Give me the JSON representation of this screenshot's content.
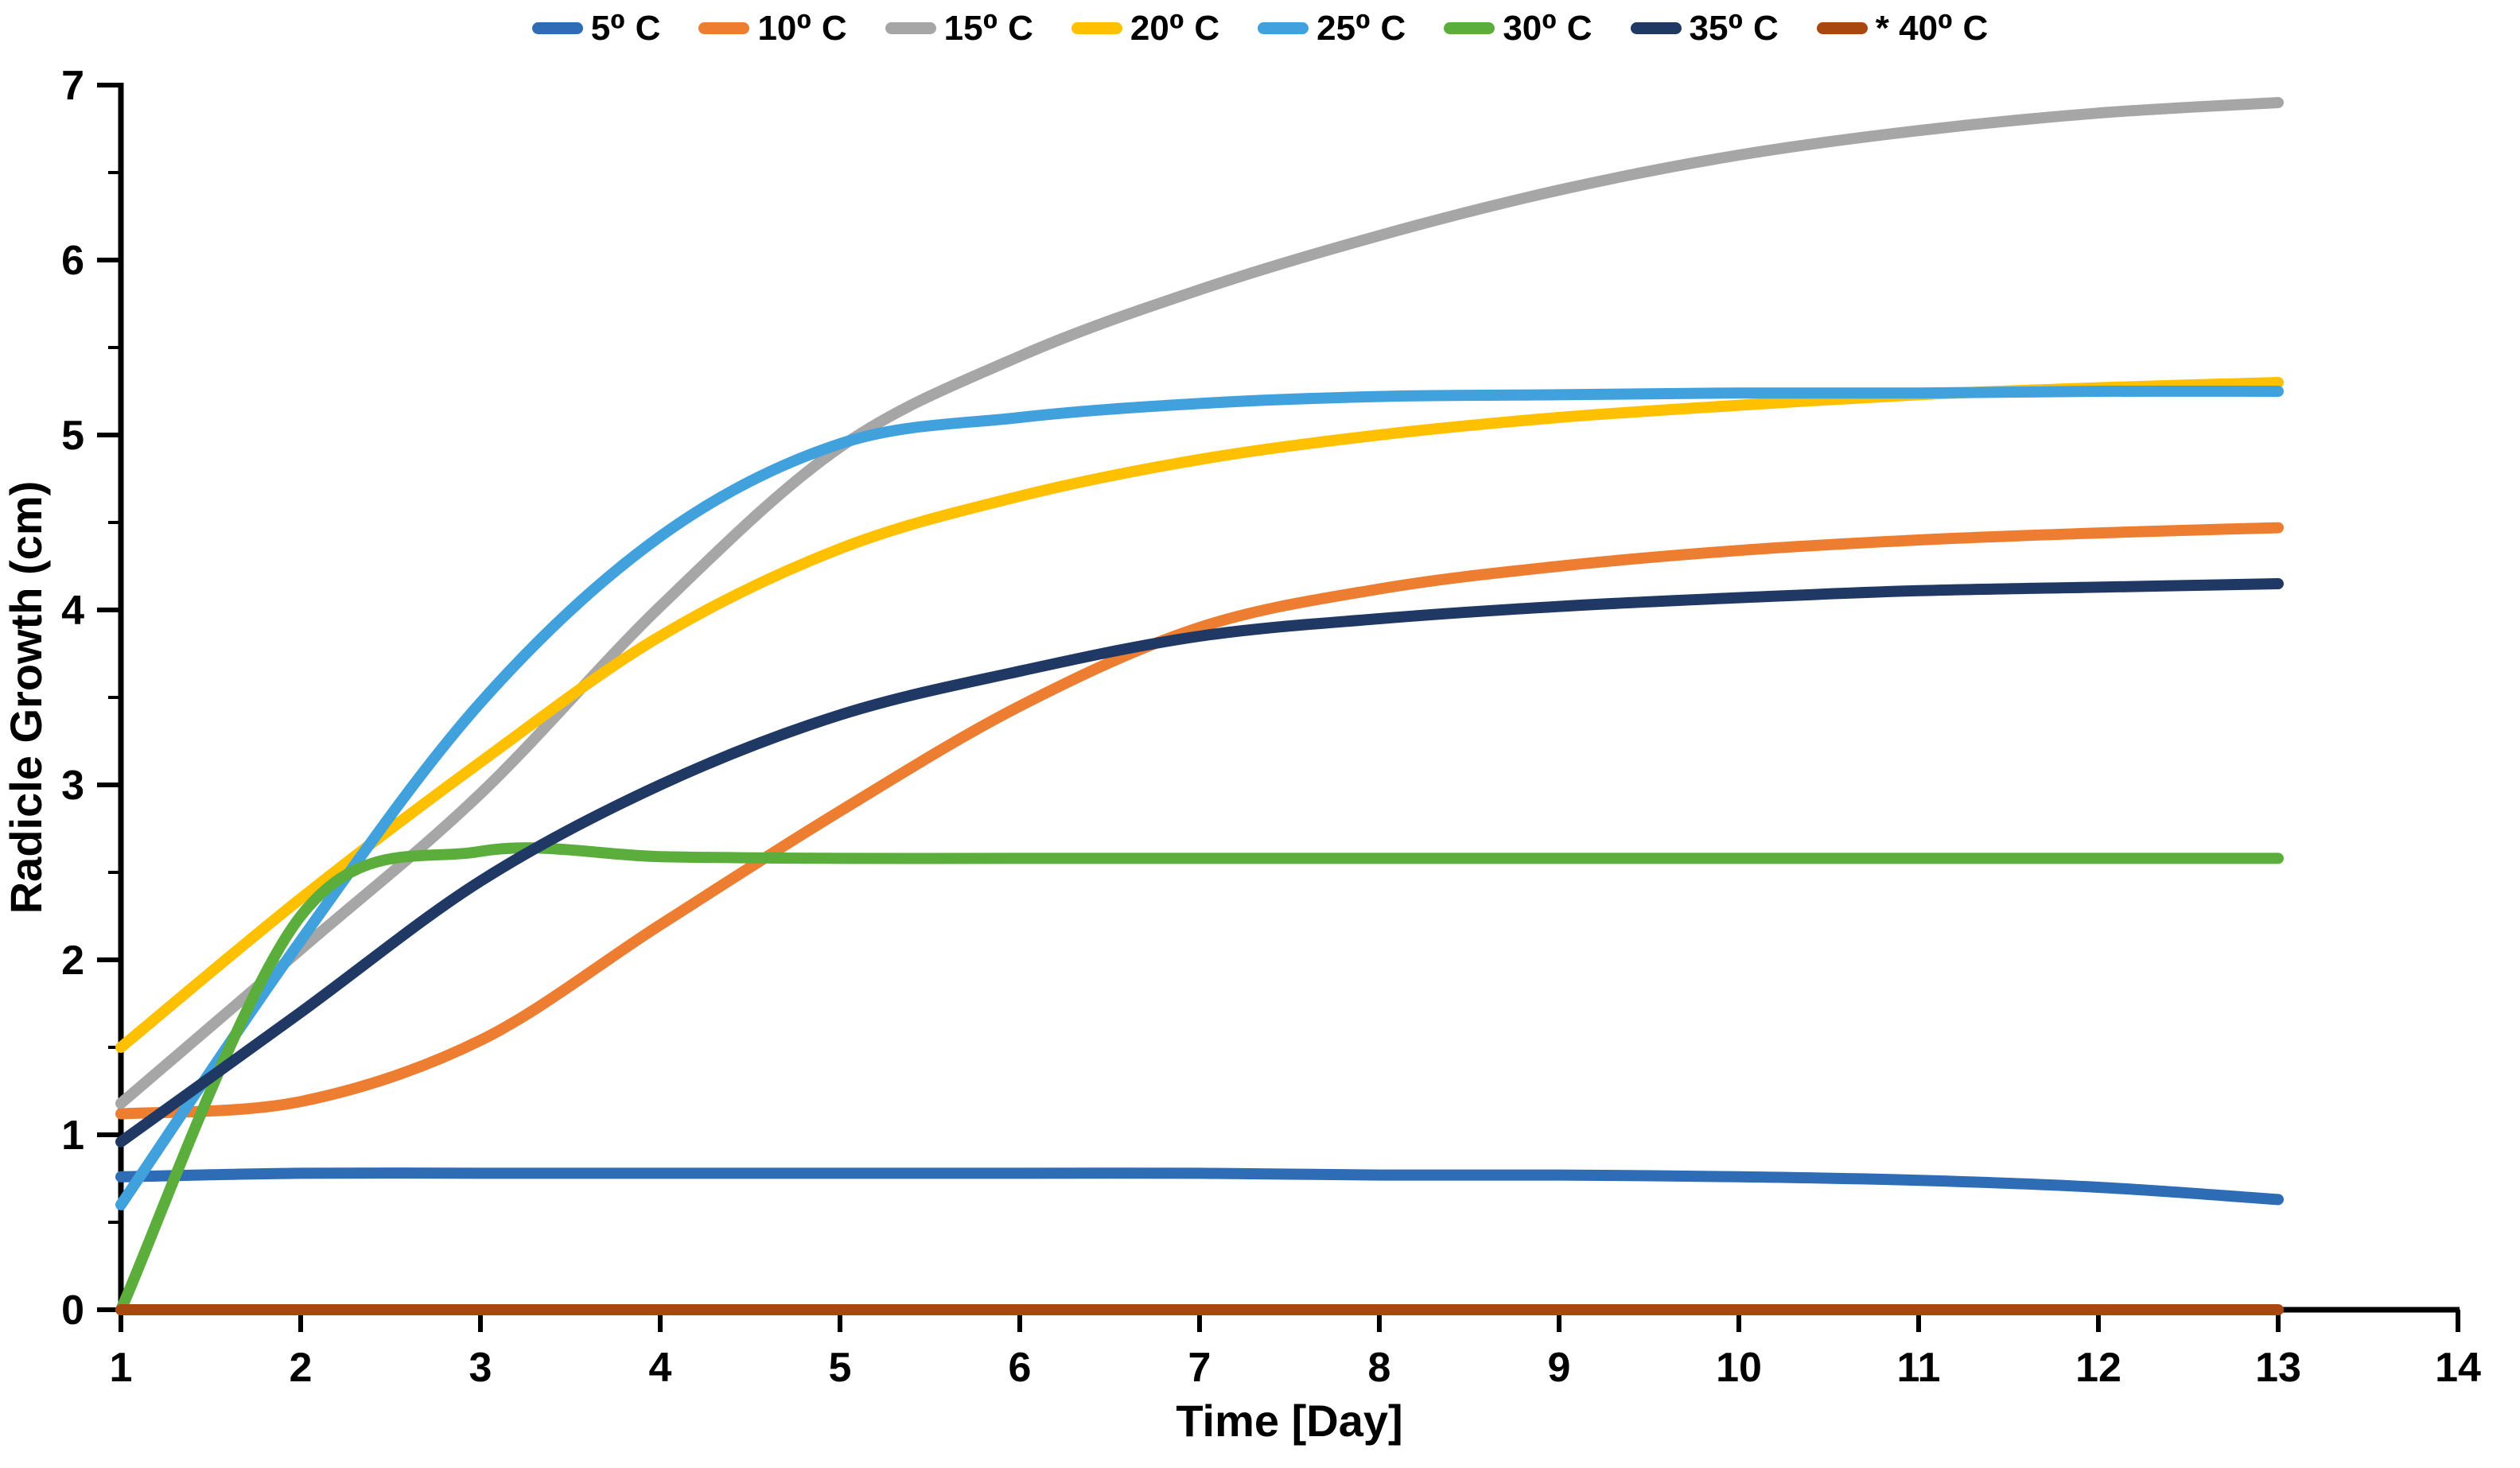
{
  "chart_data": {
    "type": "line",
    "title": "",
    "xlabel": "Time [Day]",
    "ylabel": "Radicle Growth (cm)",
    "xlim": [
      1,
      14
    ],
    "ylim": [
      0,
      7
    ],
    "x_ticks": [
      1,
      2,
      3,
      4,
      5,
      6,
      7,
      8,
      9,
      10,
      11,
      12,
      13,
      14
    ],
    "y_ticks": [
      0,
      1,
      2,
      3,
      4,
      5,
      6,
      7
    ],
    "y_minor_tick_step": 0.5,
    "grid": false,
    "legend_position": "top",
    "line_style": "smooth",
    "x": [
      1,
      2,
      3,
      4,
      5,
      6,
      7,
      8,
      9,
      10,
      11,
      12,
      13
    ],
    "series": [
      {
        "name": "5⁰ C",
        "color": "#2E6CB5",
        "values": [
          0.76,
          0.78,
          0.78,
          0.78,
          0.78,
          0.78,
          0.78,
          0.77,
          0.77,
          0.76,
          0.74,
          0.7,
          0.63
        ]
      },
      {
        "name": "10⁰ C",
        "color": "#ED7D31",
        "values": [
          1.12,
          1.19,
          1.54,
          2.2,
          2.85,
          3.45,
          3.9,
          4.12,
          4.25,
          4.34,
          4.4,
          4.44,
          4.47
        ]
      },
      {
        "name": "15⁰ C",
        "color": "#A6A6A6",
        "values": [
          1.18,
          2.06,
          2.95,
          4.02,
          4.93,
          5.45,
          5.83,
          6.14,
          6.4,
          6.6,
          6.74,
          6.84,
          6.9
        ]
      },
      {
        "name": "20⁰ C",
        "color": "#FFC000",
        "values": [
          1.5,
          2.35,
          3.13,
          3.85,
          4.35,
          4.65,
          4.86,
          5.0,
          5.1,
          5.17,
          5.23,
          5.27,
          5.3
        ]
      },
      {
        "name": "25⁰ C",
        "color": "#41A1DC",
        "values": [
          0.6,
          2.11,
          3.47,
          4.42,
          4.95,
          5.1,
          5.18,
          5.22,
          5.23,
          5.24,
          5.24,
          5.25,
          5.25
        ]
      },
      {
        "name": "30⁰ C",
        "color": "#5BAE3C",
        "values": [
          0.0,
          2.25,
          2.62,
          2.59,
          2.58,
          2.58,
          2.58,
          2.58,
          2.58,
          2.58,
          2.58,
          2.58,
          2.58
        ]
      },
      {
        "name": "35⁰ C",
        "color": "#1F3864",
        "values": [
          0.96,
          1.7,
          2.45,
          3.0,
          3.4,
          3.65,
          3.85,
          3.95,
          4.02,
          4.07,
          4.11,
          4.13,
          4.15
        ]
      },
      {
        "name": "* 40⁰ C",
        "color": "#A8470F",
        "values": [
          0.0,
          0.0,
          0.0,
          0.0,
          0.0,
          0.0,
          0.0,
          0.0,
          0.0,
          0.0,
          0.0,
          0.0,
          0.0
        ]
      }
    ]
  },
  "layout_colors": {
    "axis": "#000000",
    "background": "#ffffff"
  }
}
